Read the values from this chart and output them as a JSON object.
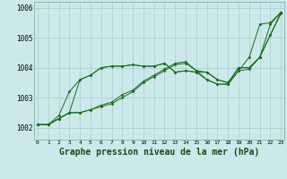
{
  "title": "Graphe pression niveau de la mer (hPa)",
  "bg_color": "#cce8ea",
  "grid_color": "#aacccc",
  "line_color": "#1a6b1a",
  "x_ticks": [
    0,
    1,
    2,
    3,
    4,
    5,
    6,
    7,
    8,
    9,
    10,
    11,
    12,
    13,
    14,
    15,
    16,
    17,
    18,
    19,
    20,
    21,
    22,
    23
  ],
  "ylim": [
    1001.6,
    1006.2
  ],
  "xlim": [
    -0.3,
    23.3
  ],
  "yticks": [
    1002,
    1003,
    1004,
    1005,
    1006
  ],
  "series": [
    [
      1002.1,
      1002.1,
      1002.3,
      1002.5,
      1002.5,
      1002.6,
      1002.7,
      1002.8,
      1003.0,
      1003.2,
      1003.5,
      1003.7,
      1003.9,
      1004.1,
      1004.15,
      1003.9,
      1003.85,
      1003.6,
      1003.5,
      1004.0,
      1004.0,
      1004.35,
      1005.1,
      1005.8
    ],
    [
      1002.1,
      1002.1,
      1002.3,
      1002.5,
      1003.6,
      1003.75,
      1004.0,
      1004.05,
      1004.05,
      1004.1,
      1004.05,
      1004.05,
      1004.15,
      1003.85,
      1003.9,
      1003.85,
      1003.85,
      1003.6,
      1003.5,
      1004.0,
      1004.0,
      1004.35,
      1005.45,
      1005.85
    ],
    [
      1002.1,
      1002.1,
      1002.3,
      1002.5,
      1002.5,
      1002.6,
      1002.75,
      1002.85,
      1003.1,
      1003.25,
      1003.55,
      1003.75,
      1003.95,
      1004.15,
      1004.2,
      1003.9,
      1003.6,
      1003.45,
      1003.45,
      1003.9,
      1003.95,
      1004.35,
      1005.1,
      1005.85
    ],
    [
      1002.1,
      1002.1,
      1002.4,
      1003.2,
      1003.6,
      1003.75,
      1004.0,
      1004.05,
      1004.05,
      1004.1,
      1004.05,
      1004.05,
      1004.15,
      1003.85,
      1003.9,
      1003.85,
      1003.6,
      1003.45,
      1003.45,
      1003.9,
      1004.35,
      1005.45,
      1005.5,
      1005.85
    ]
  ]
}
